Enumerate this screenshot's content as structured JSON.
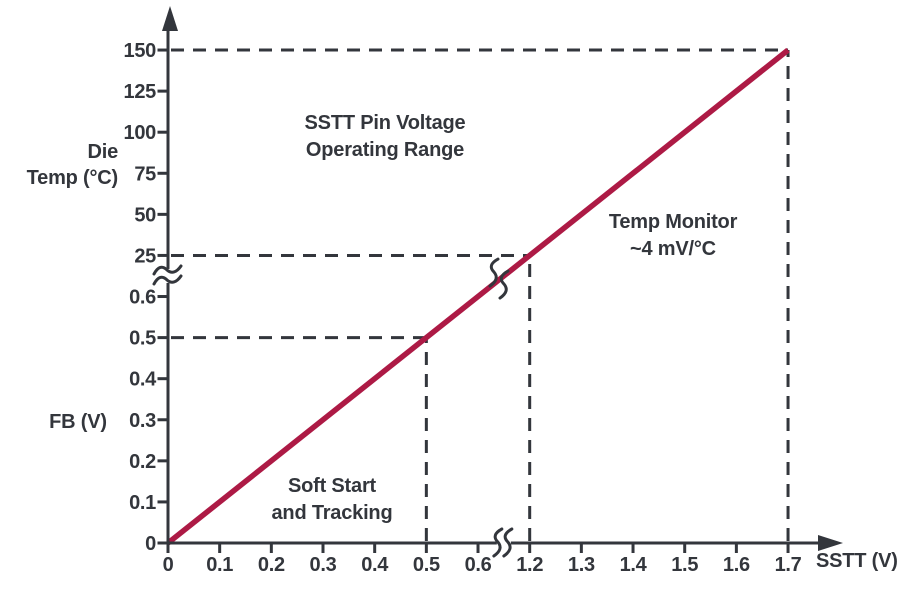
{
  "chart_data": {
    "type": "line",
    "title": "SSTT Pin Voltage Operating Range",
    "x_axis": {
      "label": "SSTT (V)",
      "ticks": [
        "0",
        "0.1",
        "0.2",
        "0.3",
        "0.4",
        "0.5",
        "0.6",
        "1.2",
        "1.3",
        "1.4",
        "1.5",
        "1.6",
        "1.7"
      ],
      "break_between": [
        "0.6",
        "1.2"
      ]
    },
    "y_axis": {
      "lower_section_label": "FB (V)",
      "upper_section_label_line1": "Die",
      "upper_section_label_line2": "Temp (°C)",
      "ticks": [
        "0",
        "0.1",
        "0.2",
        "0.3",
        "0.4",
        "0.5",
        "0.6",
        "25",
        "50",
        "75",
        "100",
        "125",
        "150"
      ],
      "break_between": [
        "0.6",
        "25"
      ]
    },
    "series": [
      {
        "name": "sstt-characteristic",
        "color": "#AD1A45",
        "points": [
          {
            "x": "0",
            "y": "0"
          },
          {
            "x": "0.5",
            "y": "0.5"
          },
          {
            "x": "1.2",
            "y": "25"
          },
          {
            "x": "1.7",
            "y": "150"
          }
        ]
      }
    ],
    "guides": [
      {
        "x": "0.5",
        "y": "0.5"
      },
      {
        "x": "1.2",
        "y": "25"
      },
      {
        "x": "1.7",
        "y": "150"
      }
    ],
    "annotations": [
      {
        "name": "operating-range",
        "line1": "SSTT Pin Voltage",
        "line2": "Operating Range"
      },
      {
        "name": "temp-monitor",
        "line1": "Temp Monitor",
        "line2": "~4 mV/°C"
      },
      {
        "name": "soft-start",
        "line1": "Soft Start",
        "line2": "and Tracking"
      }
    ],
    "colors": {
      "line": "#AD1A45",
      "axis": "#33363C",
      "text": "#33363C",
      "background": "#FFFFFF"
    },
    "legend": "none",
    "grid": "off"
  }
}
